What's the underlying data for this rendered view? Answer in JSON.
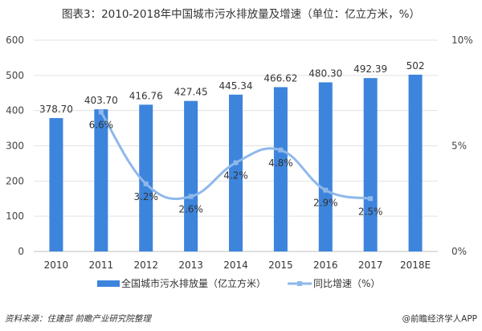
{
  "chart_data": {
    "type": "bar",
    "title": "图表3：2010-2018年中国城市污水排放量及增速（单位：亿立方米，%）",
    "categories": [
      "2010",
      "2011",
      "2012",
      "2013",
      "2014",
      "2015",
      "2016",
      "2017",
      "2018E"
    ],
    "series": [
      {
        "name": "全国城市污水排放量（亿立方米）",
        "type": "bar",
        "axis": "left",
        "values": [
          378.7,
          403.7,
          416.76,
          427.45,
          445.34,
          466.62,
          480.3,
          492.39,
          502
        ],
        "labels": [
          "378.70",
          "403.70",
          "416.76",
          "427.45",
          "445.34",
          "466.62",
          "480.30",
          "492.39",
          "502"
        ]
      },
      {
        "name": "同比增速（%）",
        "type": "line",
        "axis": "right",
        "values": [
          null,
          6.6,
          3.2,
          2.6,
          4.2,
          4.8,
          2.9,
          2.5,
          null
        ],
        "labels": [
          "",
          "6.6%",
          "3.2%",
          "2.6%",
          "4.2%",
          "4.8%",
          "2.9%",
          "2.5%",
          ""
        ]
      }
    ],
    "ylim": [
      0,
      600
    ],
    "yticks": [
      "0",
      "100",
      "200",
      "300",
      "400",
      "500",
      "600"
    ],
    "y2lim": [
      0,
      10
    ],
    "y2ticks": [
      "0%",
      "5%",
      "10%"
    ],
    "grid": true,
    "legend": "bottom",
    "colors": {
      "bar": "#3d84dc",
      "line": "#8fb8ea"
    }
  },
  "footer": {
    "source": "资料来源：住建部 前瞻产业研究院整理",
    "brand": "@前瞻经济学人APP"
  }
}
